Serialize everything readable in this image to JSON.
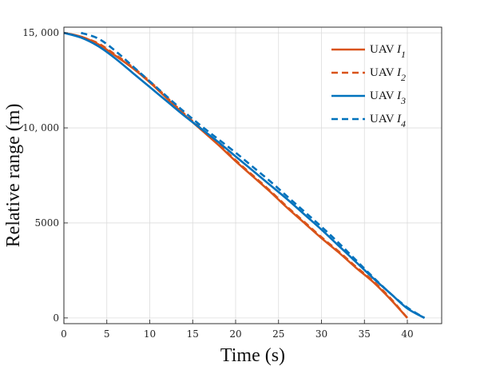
{
  "chart_data": {
    "type": "line",
    "xlabel": "Time (s)",
    "ylabel": "Relative range (m)",
    "xlim": [
      0,
      44
    ],
    "ylim": [
      -300,
      15300
    ],
    "xticks": [
      0,
      5,
      10,
      15,
      20,
      25,
      30,
      35,
      40
    ],
    "xtick_labels": [
      "0",
      "5",
      "10",
      "15",
      "20",
      "25",
      "30",
      "35",
      "40"
    ],
    "yticks": [
      0,
      5000,
      10000,
      15000
    ],
    "ytick_labels": [
      "0",
      "5000",
      "10, 000",
      "15, 000"
    ],
    "grid": true,
    "legend_position": "top-right",
    "series": [
      {
        "name": "UAV I",
        "subscript": "1",
        "color": "#d95319",
        "dash": "solid",
        "x": [
          0,
          2,
          4,
          6,
          8,
          10,
          12,
          14,
          16,
          18,
          20,
          22,
          24,
          26,
          28,
          30,
          32,
          34,
          36,
          38,
          40
        ],
        "y": [
          15000,
          14800,
          14400,
          13800,
          13150,
          12400,
          11550,
          10700,
          9900,
          9100,
          8250,
          7450,
          6650,
          5800,
          5000,
          4200,
          3450,
          2650,
          1900,
          1000,
          0
        ]
      },
      {
        "name": "UAV I",
        "subscript": "2",
        "color": "#d95319",
        "dash": "dashed",
        "x": [
          2,
          4,
          6,
          8,
          10,
          12,
          14,
          16,
          18,
          20,
          22,
          24,
          26,
          28,
          30,
          32,
          34,
          36,
          38,
          40
        ],
        "y": [
          14800,
          14450,
          13850,
          13200,
          12450,
          11600,
          10750,
          9950,
          9150,
          8300,
          7500,
          6700,
          5850,
          5050,
          4250,
          3500,
          2700,
          1950,
          1050,
          0
        ]
      },
      {
        "name": "UAV I",
        "subscript": "3",
        "color": "#0072bd",
        "dash": "solid",
        "x": [
          0,
          2,
          4,
          6,
          8,
          10,
          12,
          14,
          16,
          18,
          20,
          22,
          24,
          26,
          28,
          30,
          32,
          34,
          36,
          38,
          40,
          42
        ],
        "y": [
          15000,
          14750,
          14300,
          13650,
          12900,
          12150,
          11400,
          10650,
          9950,
          9250,
          8500,
          7750,
          7000,
          6250,
          5450,
          4650,
          3800,
          2950,
          2100,
          1300,
          500,
          0
        ]
      },
      {
        "name": "UAV I",
        "subscript": "4",
        "color": "#0072bd",
        "dash": "dashed",
        "x": [
          2,
          4,
          6,
          8,
          10,
          12,
          14,
          16,
          18,
          20,
          22,
          24,
          26,
          28,
          30,
          32,
          34,
          36,
          38,
          40,
          42
        ],
        "y": [
          15000,
          14700,
          14050,
          13250,
          12450,
          11650,
          10850,
          10100,
          9400,
          8700,
          7950,
          7200,
          6400,
          5600,
          4800,
          3950,
          3050,
          2150,
          1300,
          550,
          0
        ]
      }
    ]
  }
}
